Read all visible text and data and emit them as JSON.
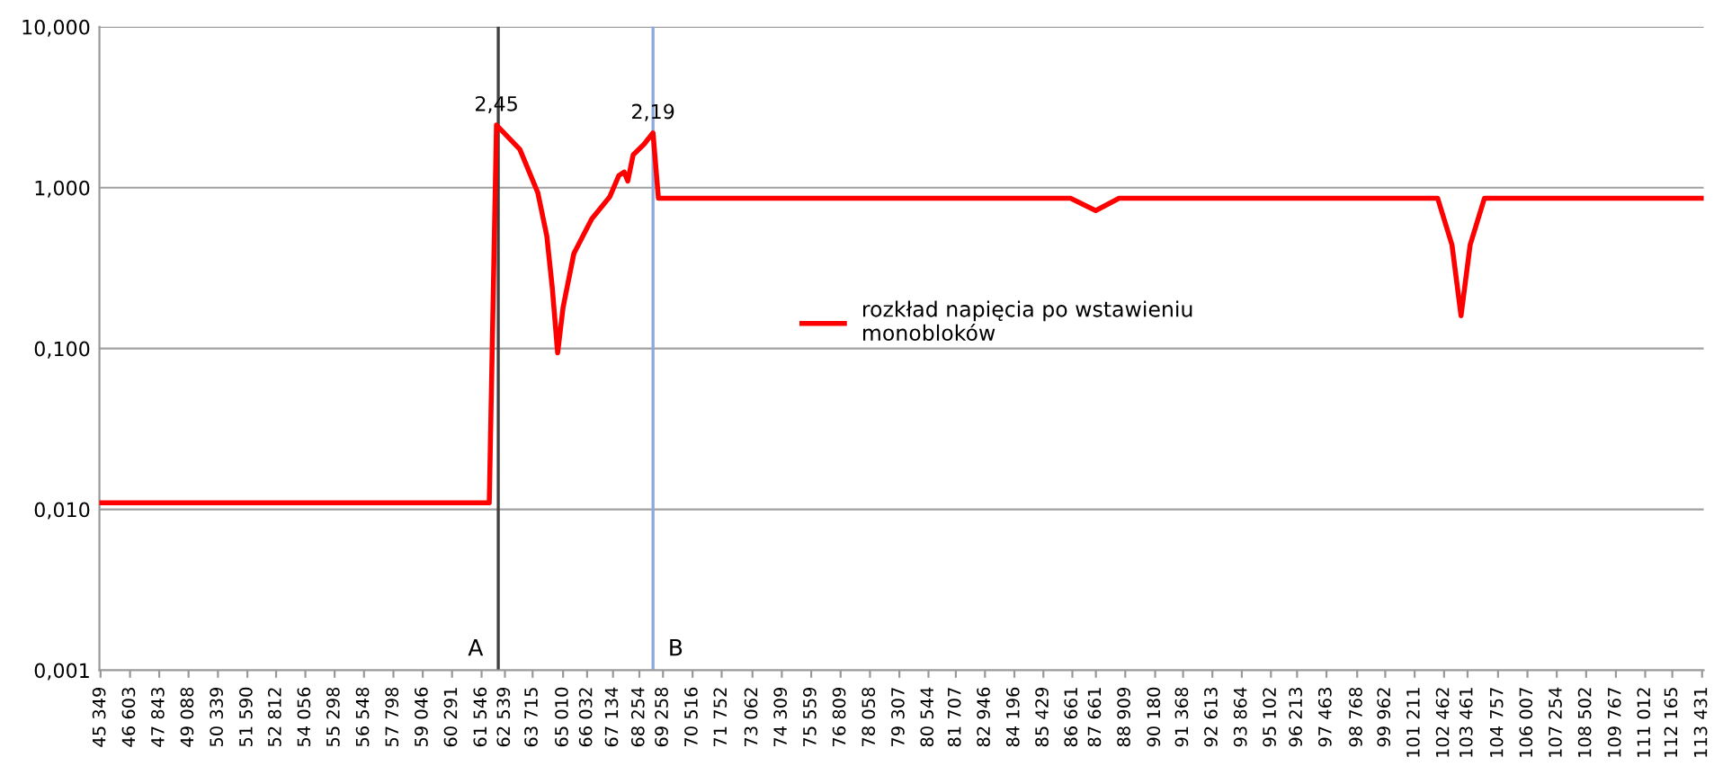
{
  "chart_data": {
    "type": "line",
    "log": "y",
    "grid": "y",
    "legend": "center",
    "marker": "none",
    "line_style": "solid",
    "series": [
      {
        "name": "rozkład napięcia po wstawieniu\nmonobloków",
        "color": "#ff0000",
        "x": [
          45349,
          61873,
          62180,
          63173,
          63938,
          64320,
          64550,
          64780,
          65010,
          65470,
          66230,
          67000,
          67380,
          67610,
          67760,
          67990,
          68450,
          68834,
          69064,
          86583,
          87653,
          88648,
          102190,
          102800,
          103183,
          103570,
          104178,
          113431
        ],
        "values": [
          0.011,
          0.011,
          2.45,
          1.73,
          0.93,
          0.5,
          0.24,
          0.094,
          0.18,
          0.39,
          0.64,
          0.88,
          1.19,
          1.25,
          1.1,
          1.6,
          1.86,
          2.19,
          0.86,
          0.86,
          0.72,
          0.86,
          0.86,
          0.44,
          0.16,
          0.44,
          0.86,
          0.86
        ]
      }
    ],
    "xlim": [
      45300,
      113500
    ],
    "xticks": [
      {
        "value": 45349,
        "label": "45 349"
      },
      {
        "value": 46603,
        "label": "46 603"
      },
      {
        "value": 47843,
        "label": "47 843"
      },
      {
        "value": 49088,
        "label": "49 088"
      },
      {
        "value": 50339,
        "label": "50 339"
      },
      {
        "value": 51590,
        "label": "51 590"
      },
      {
        "value": 52812,
        "label": "52 812"
      },
      {
        "value": 54056,
        "label": "54 056"
      },
      {
        "value": 55298,
        "label": "55 298"
      },
      {
        "value": 56548,
        "label": "56 548"
      },
      {
        "value": 57798,
        "label": "57 798"
      },
      {
        "value": 59046,
        "label": "59 046"
      },
      {
        "value": 60291,
        "label": "60 291"
      },
      {
        "value": 61546,
        "label": "61 546"
      },
      {
        "value": 62539,
        "label": "62 539"
      },
      {
        "value": 63715,
        "label": "63 715"
      },
      {
        "value": 65010,
        "label": "65 010"
      },
      {
        "value": 66032,
        "label": "66 032"
      },
      {
        "value": 67134,
        "label": "67 134"
      },
      {
        "value": 68254,
        "label": "68 254"
      },
      {
        "value": 69258,
        "label": "69 258"
      },
      {
        "value": 70516,
        "label": "70 516"
      },
      {
        "value": 71752,
        "label": "71 752"
      },
      {
        "value": 73062,
        "label": "73 062"
      },
      {
        "value": 74309,
        "label": "74 309"
      },
      {
        "value": 75559,
        "label": "75 559"
      },
      {
        "value": 76809,
        "label": "76 809"
      },
      {
        "value": 78058,
        "label": "78 058"
      },
      {
        "value": 79307,
        "label": "79 307"
      },
      {
        "value": 80544,
        "label": "80 544"
      },
      {
        "value": 81707,
        "label": "81 707"
      },
      {
        "value": 82946,
        "label": "82 946"
      },
      {
        "value": 84196,
        "label": "84 196"
      },
      {
        "value": 85429,
        "label": "85 429"
      },
      {
        "value": 86661,
        "label": "86 661"
      },
      {
        "value": 87661,
        "label": "87 661"
      },
      {
        "value": 88909,
        "label": "88 909"
      },
      {
        "value": 90180,
        "label": "90 180"
      },
      {
        "value": 91368,
        "label": "91 368"
      },
      {
        "value": 92613,
        "label": "92 613"
      },
      {
        "value": 93864,
        "label": "93 864"
      },
      {
        "value": 95102,
        "label": "95 102"
      },
      {
        "value": 96213,
        "label": "96 213"
      },
      {
        "value": 97463,
        "label": "97 463"
      },
      {
        "value": 98768,
        "label": "98 768"
      },
      {
        "value": 99962,
        "label": "99 962"
      },
      {
        "value": 101211,
        "label": "101 211"
      },
      {
        "value": 102462,
        "label": "102 462"
      },
      {
        "value": 103461,
        "label": "103 461"
      },
      {
        "value": 104757,
        "label": "104 757"
      },
      {
        "value": 106007,
        "label": "106 007"
      },
      {
        "value": 107254,
        "label": "107 254"
      },
      {
        "value": 108502,
        "label": "108 502"
      },
      {
        "value": 109767,
        "label": "109 767"
      },
      {
        "value": 111012,
        "label": "111 012"
      },
      {
        "value": 112165,
        "label": "112 165"
      },
      {
        "value": 113431,
        "label": "113 431"
      }
    ],
    "ylim": [
      0.001,
      10
    ],
    "yticks": [
      {
        "value": 0.001,
        "label": "0,001"
      },
      {
        "value": 0.01,
        "label": "0,010"
      },
      {
        "value": 0.1,
        "label": "0,100"
      },
      {
        "value": 1,
        "label": "1,000"
      },
      {
        "value": 10,
        "label": "10,000"
      }
    ],
    "ref_lines": [
      {
        "axis": "x",
        "value": 62256,
        "label": "A",
        "color": "#404040"
      },
      {
        "axis": "x",
        "value": 68834,
        "label": "B",
        "color": "#8eaadb"
      }
    ],
    "annotations": [
      {
        "text": "2,45",
        "x": 62180,
        "y": 2.45
      },
      {
        "text": "2,19",
        "x": 68834,
        "y": 2.19
      }
    ]
  }
}
